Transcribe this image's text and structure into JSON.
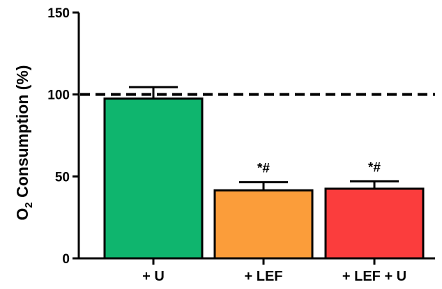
{
  "chart_data": {
    "type": "bar",
    "ylabel": {
      "prefix": "O",
      "subscript": "2",
      "suffix": " Consumption (%)"
    },
    "xlabel": "",
    "ylim": [
      0,
      150
    ],
    "yticks": [
      0,
      50,
      100,
      150
    ],
    "categories": [
      "+ U",
      "+ LEF",
      "+ LEF + U"
    ],
    "values": [
      97.5,
      41.5,
      42.5
    ],
    "errors": [
      7,
      5,
      4.5
    ],
    "annotations": [
      "",
      "*#",
      "*#"
    ],
    "colors": [
      "#0fb56e",
      "#fb9d3a",
      "#fb3d3d"
    ],
    "reference_line": {
      "value": 100,
      "style": "dashed"
    },
    "grid": false,
    "legend": "none"
  }
}
